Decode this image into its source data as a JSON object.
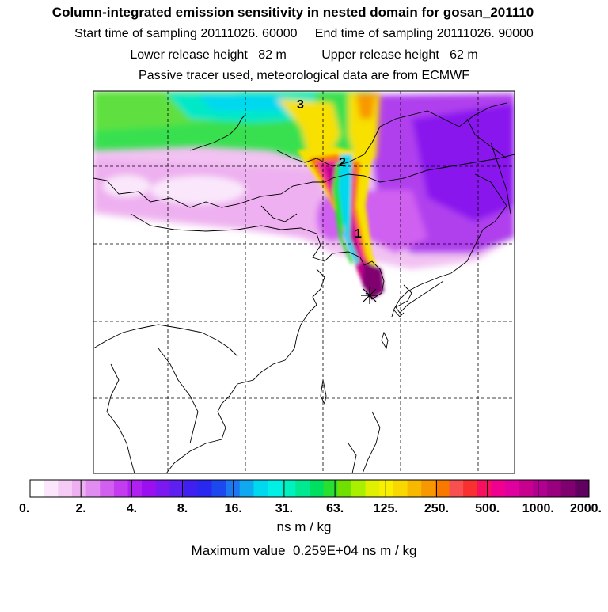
{
  "header": {
    "title": "Column-integrated emission sensitivity in nested domain for gosan_201110",
    "sampling_line": "Start time of sampling 20111026. 60000     End time of sampling 20111026. 90000",
    "release_line": "Lower release height   82 m          Upper release height   62 m",
    "tracer_line": "Passive tracer used, meteorological data are from ECMWF"
  },
  "map": {
    "plume_labels": [
      "1",
      "2",
      "3"
    ],
    "release_marker": "star-asterisk"
  },
  "colorbar": {
    "tick_labels": [
      "0.",
      "2.",
      "4.",
      "8.",
      "16.",
      "31.",
      "63.",
      "125.",
      "250.",
      "500.",
      "1000.",
      "2000."
    ],
    "colors": [
      "#ffffff",
      "#fbe6fb",
      "#f5ccf5",
      "#eeb0f0",
      "#e08cf0",
      "#d35ff0",
      "#c33cf0",
      "#b020f0",
      "#9a10f0",
      "#7c18f0",
      "#5e20f0",
      "#4020f0",
      "#2828f0",
      "#1c48f0",
      "#1c78f0",
      "#10a8f0",
      "#00d8f0",
      "#00f0e8",
      "#00f0c0",
      "#00e890",
      "#00e060",
      "#28e030",
      "#70e000",
      "#a8f000",
      "#e0f000",
      "#f8f000",
      "#f8d800",
      "#f8b800",
      "#f89800",
      "#f87800",
      "#f85050",
      "#f83030",
      "#f81060",
      "#f00090",
      "#e000a0",
      "#c80090",
      "#b00090",
      "#980080",
      "#800070",
      "#600060"
    ],
    "unit": "ns m / kg",
    "max_value_line": "Maximum value  0.259E+04 ns m / kg"
  }
}
